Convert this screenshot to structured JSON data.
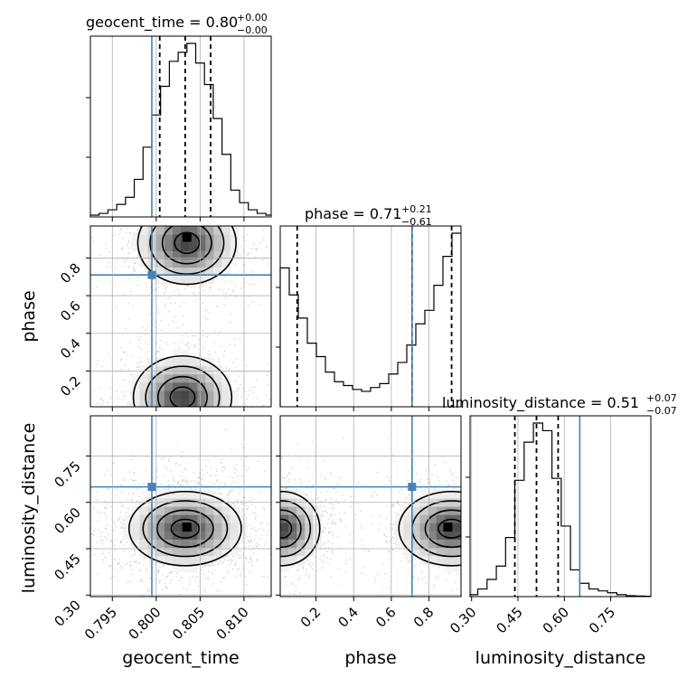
{
  "chart_data": {
    "type": "corner",
    "parameters": [
      "geocent_time",
      "phase",
      "luminosity_distance"
    ],
    "axis_labels": {
      "geocent_time": "geocent_time",
      "phase": "phase",
      "luminosity_distance": "luminosity_distance"
    },
    "ranges": {
      "geocent_time": [
        0.7925,
        0.8131
      ],
      "phase": [
        0.01,
        0.97
      ],
      "luminosity_distance": [
        0.295,
        0.88
      ]
    },
    "ticks": {
      "geocent_time": {
        "values": [
          0.795,
          0.8,
          0.805,
          0.81
        ],
        "labels": [
          "0.795",
          "0.800",
          "0.805",
          "0.810"
        ]
      },
      "phase_x": {
        "values": [
          0.2,
          0.4,
          0.6,
          0.8
        ],
        "labels": [
          "0.2",
          "0.4",
          "0.6",
          "0.8"
        ]
      },
      "phase_y": {
        "values": [
          0.2,
          0.4,
          0.6,
          0.8
        ],
        "labels": [
          "0.2",
          "0.4",
          "0.6",
          "0.8"
        ]
      },
      "luminosity_distance": {
        "values": [
          0.3,
          0.45,
          0.6,
          0.75
        ],
        "labels": [
          "0.30",
          "0.45",
          "0.60",
          "0.75"
        ]
      }
    },
    "titles": [
      {
        "param": "geocent_time",
        "prefix": "geocent_time = ",
        "median": "0.80",
        "plus": "+0.00",
        "minus": "−0.00"
      },
      {
        "param": "phase",
        "prefix": "phase = ",
        "median": "0.71",
        "plus": "+0.21",
        "minus": "−0.61"
      },
      {
        "param": "luminosity_distance",
        "prefix": "luminosity_distance = ",
        "median": "0.51",
        "plus": "+0.07",
        "minus": "−0.07"
      }
    ],
    "truths": {
      "geocent_time": 0.7995,
      "phase": 0.71,
      "luminosity_distance": 0.65
    },
    "quantiles": {
      "geocent_time": [
        0.8004,
        0.8033,
        0.8062
      ],
      "phase": [
        0.1,
        0.71,
        0.92
      ],
      "luminosity_distance": [
        0.44,
        0.51,
        0.58
      ]
    },
    "histograms": {
      "geocent_time": {
        "edges": [
          0.7925,
          0.7935,
          0.7945,
          0.7955,
          0.7965,
          0.7975,
          0.7985,
          0.7995,
          0.8005,
          0.8015,
          0.8025,
          0.8035,
          0.8045,
          0.8055,
          0.8065,
          0.8075,
          0.8085,
          0.8095,
          0.8105,
          0.8115,
          0.8125,
          0.8131
        ],
        "counts": [
          0.01,
          0.02,
          0.04,
          0.07,
          0.11,
          0.21,
          0.39,
          0.57,
          0.73,
          0.87,
          0.92,
          0.97,
          0.86,
          0.74,
          0.55,
          0.35,
          0.15,
          0.08,
          0.04,
          0.02,
          0.01
        ]
      },
      "phase": {
        "edges": [
          0.01,
          0.058,
          0.106,
          0.154,
          0.202,
          0.25,
          0.298,
          0.346,
          0.394,
          0.442,
          0.49,
          0.538,
          0.586,
          0.634,
          0.682,
          0.73,
          0.778,
          0.826,
          0.874,
          0.922,
          0.97
        ],
        "counts": [
          0.72,
          0.58,
          0.46,
          0.33,
          0.26,
          0.18,
          0.13,
          0.11,
          0.09,
          0.08,
          0.1,
          0.12,
          0.17,
          0.23,
          0.32,
          0.43,
          0.5,
          0.63,
          0.78,
          0.9
        ]
      },
      "luminosity_distance": {
        "edges": [
          0.295,
          0.32,
          0.35,
          0.38,
          0.41,
          0.44,
          0.47,
          0.5,
          0.53,
          0.56,
          0.59,
          0.62,
          0.65,
          0.68,
          0.71,
          0.74,
          0.77,
          0.8,
          0.83,
          0.86,
          0.88
        ],
        "counts": [
          0.01,
          0.04,
          0.09,
          0.16,
          0.31,
          0.61,
          0.81,
          0.91,
          0.87,
          0.62,
          0.37,
          0.14,
          0.07,
          0.04,
          0.03,
          0.02,
          0.01,
          0.005,
          0.003,
          0.002
        ]
      }
    },
    "joint_panels": [
      {
        "x": "geocent_time",
        "y": "phase",
        "modes": [
          {
            "cx": 0.8035,
            "cy": 0.88,
            "sx": 0.0028,
            "sy": 0.11
          },
          {
            "cx": 0.803,
            "cy": 0.06,
            "sx": 0.0028,
            "sy": 0.11
          }
        ],
        "peak": {
          "x": 0.8035,
          "y": 0.91
        }
      },
      {
        "x": "geocent_time",
        "y": "luminosity_distance",
        "modes": [
          {
            "cx": 0.8033,
            "cy": 0.515,
            "sx": 0.0032,
            "sy": 0.06
          }
        ],
        "peak": {
          "x": 0.8035,
          "y": 0.52
        }
      },
      {
        "x": "phase",
        "y": "luminosity_distance",
        "modes": [
          {
            "cx": 0.92,
            "cy": 0.515,
            "sx": 0.14,
            "sy": 0.06
          },
          {
            "cx": 0.02,
            "cy": 0.515,
            "sx": 0.1,
            "sy": 0.06
          }
        ],
        "peak": {
          "x": 0.9,
          "y": 0.52
        }
      }
    ]
  }
}
